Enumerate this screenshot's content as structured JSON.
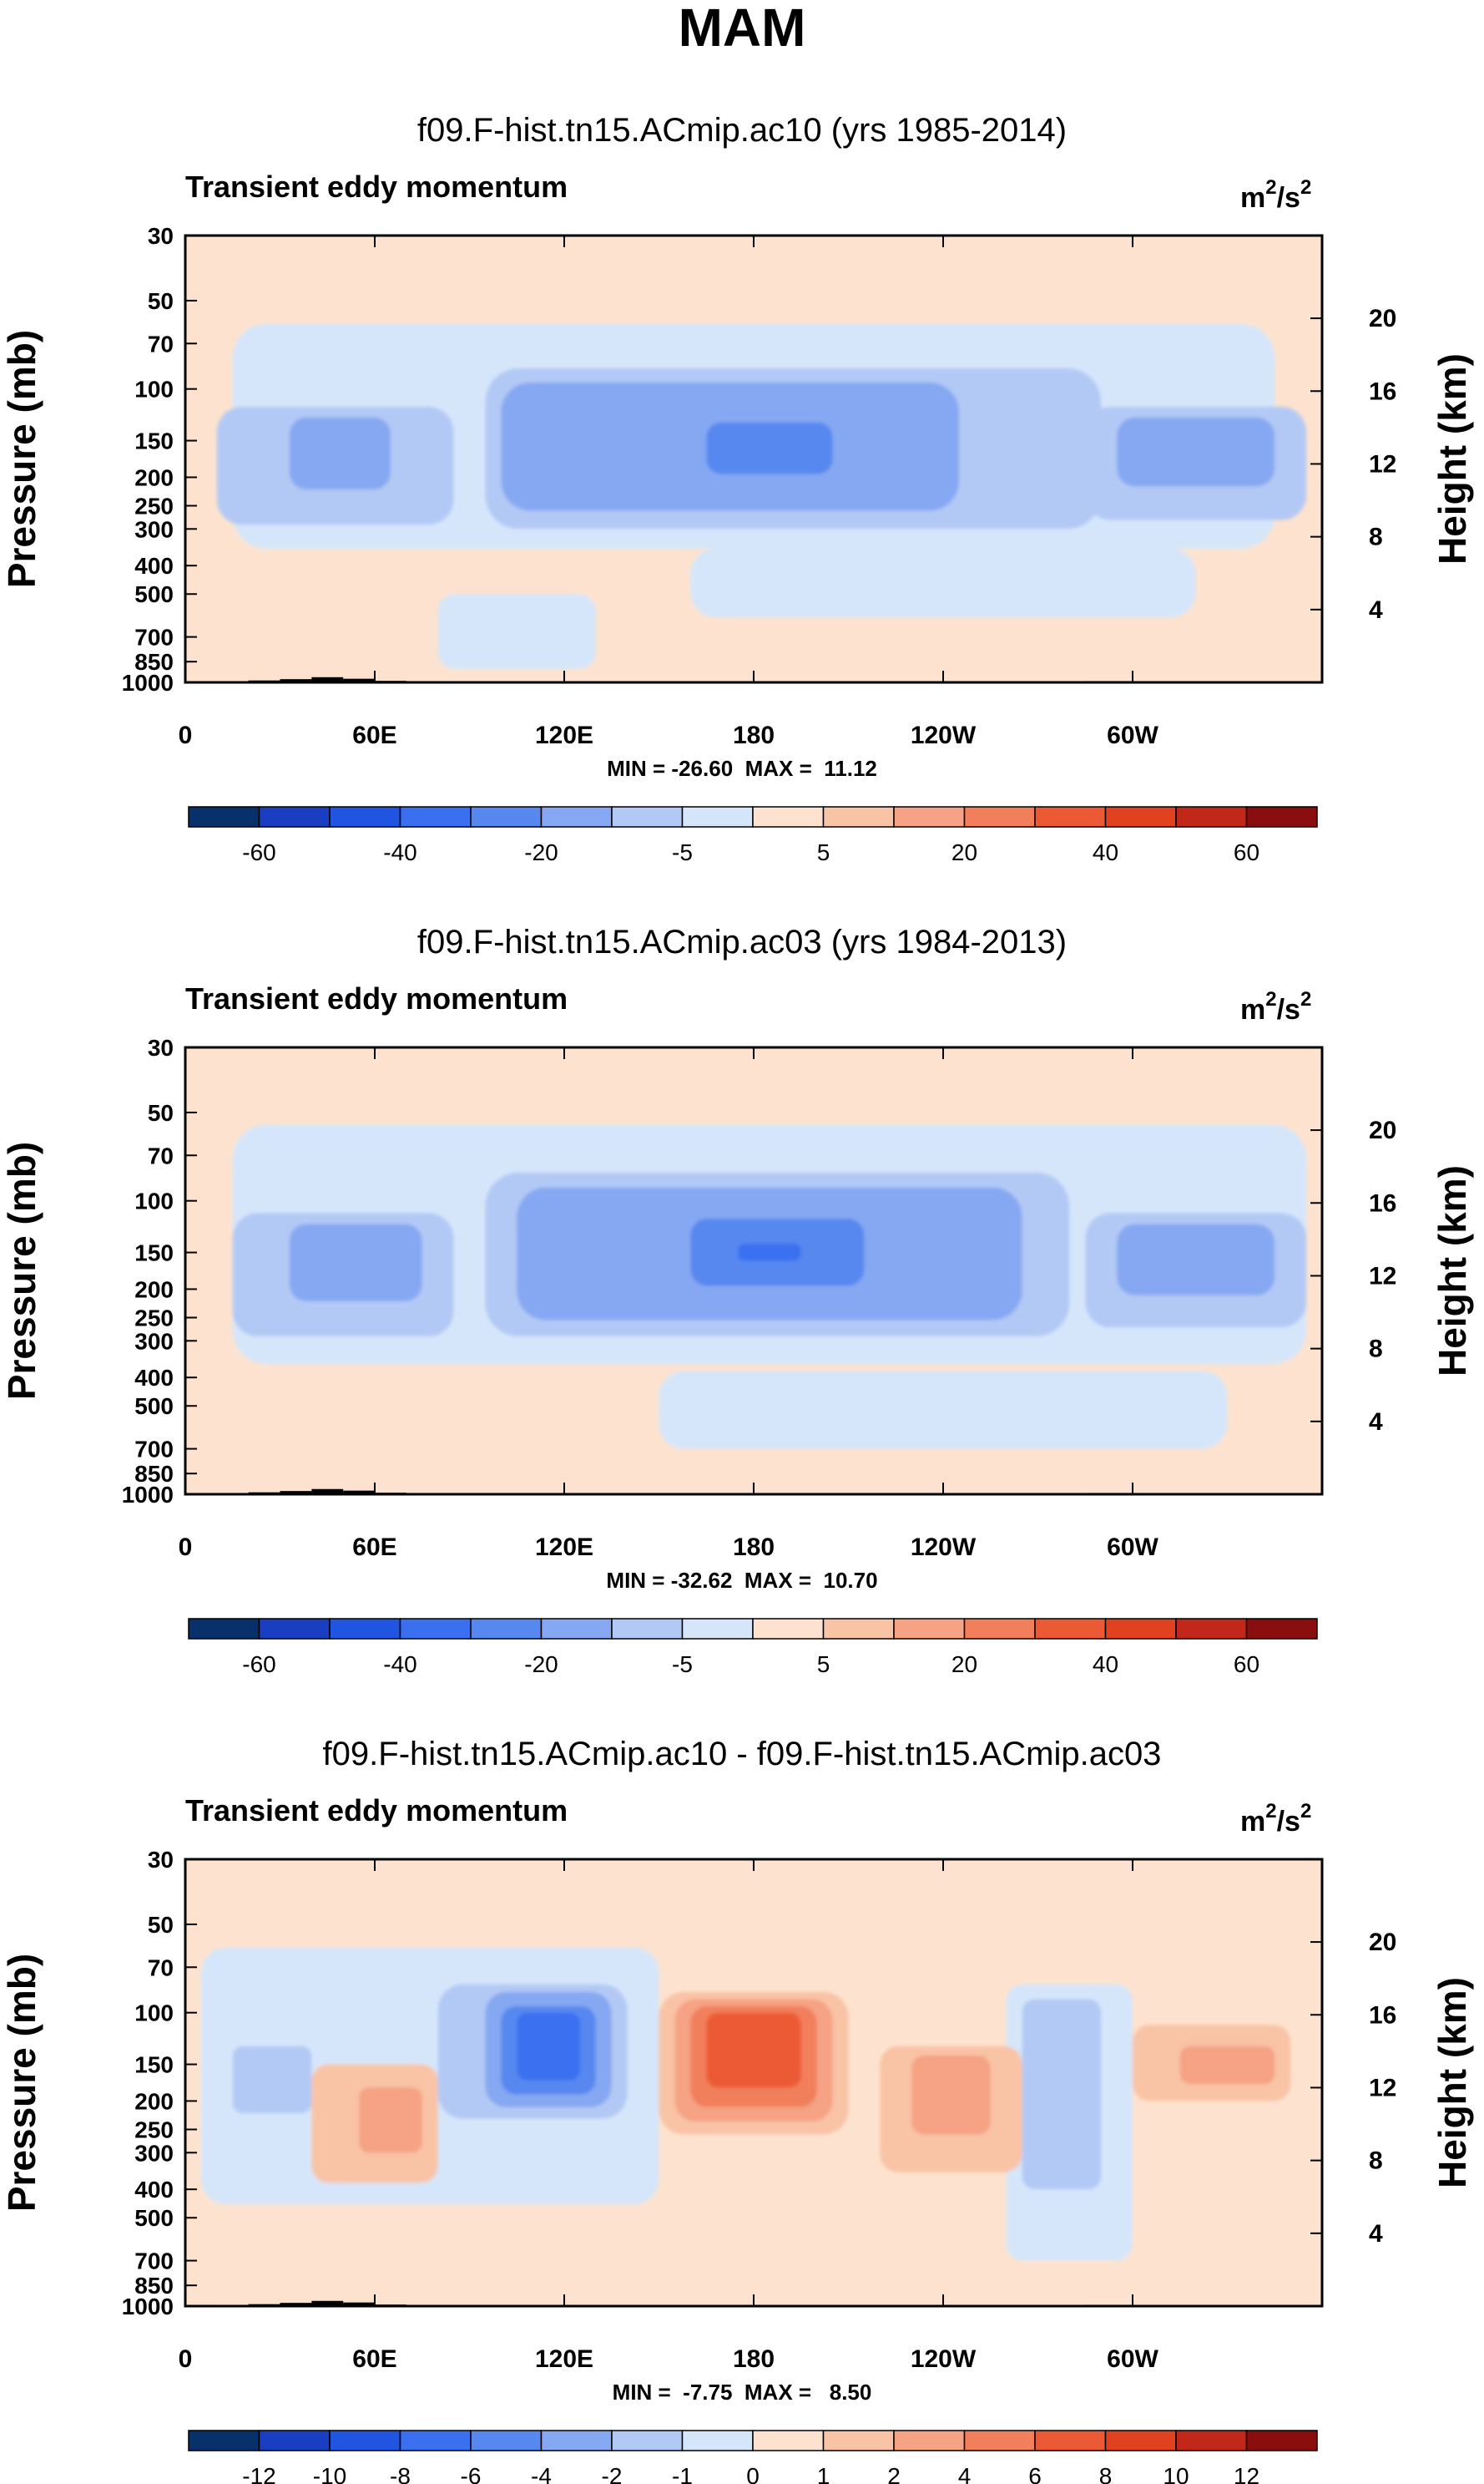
{
  "figure": {
    "title": "MAM"
  },
  "colors": {
    "background": "#fde3cf",
    "topography": "#000000",
    "frame": "#000000"
  },
  "chart_data": [
    {
      "type": "contour",
      "title": "f09.F-hist.tn15.ACmip.ac10 (yrs 1985-2014)",
      "subtitle_left": "Transient eddy momentum",
      "units_base": "m",
      "units_exp1": "2",
      "units_mid": "/s",
      "units_exp2": "2",
      "ylabel": "Pressure (mb)",
      "ylabel_right": "Height (km)",
      "pressure_ticks": [
        "30",
        "50",
        "70",
        "100",
        "150",
        "200",
        "250",
        "300",
        "400",
        "500",
        "700",
        "850",
        "1000"
      ],
      "pressure_values": [
        30,
        50,
        70,
        100,
        150,
        200,
        250,
        300,
        400,
        500,
        700,
        850,
        1000
      ],
      "height_ticks": [
        "20",
        "16",
        "12",
        "8",
        "4"
      ],
      "height_values": [
        20,
        16,
        12,
        8,
        4
      ],
      "lon_ticks": [
        "0",
        "60E",
        "120E",
        "180",
        "120W",
        "60W"
      ],
      "lon_values": [
        0,
        60,
        120,
        180,
        240,
        300
      ],
      "xlim": [
        0,
        360
      ],
      "ylim": [
        1000,
        30
      ],
      "stats": "MIN = -26.60  MAX =  11.12",
      "min": -26.6,
      "max": 11.12,
      "colorbar": {
        "labels": [
          "-60",
          "-40",
          "-20",
          "-5",
          "5",
          "20",
          "40",
          "60"
        ],
        "colors": [
          "#08306b",
          "#1a3ec2",
          "#1f55e0",
          "#3a6ff0",
          "#5688f0",
          "#86a8f2",
          "#b3c9f5",
          "#d6e6fa",
          "#fde3cf",
          "#f9c3a6",
          "#f6a284",
          "#f27f5c",
          "#ec5a35",
          "#e0421f",
          "#c2281a",
          "#8a0e0e"
        ]
      },
      "features": [
        {
          "type": "negative-core",
          "lon_center": 185,
          "pressure_center": 150,
          "level": -20
        },
        {
          "type": "negative-core",
          "lon_center": 50,
          "pressure_center": 170,
          "level": -10
        },
        {
          "type": "negative-core",
          "lon_center": 320,
          "pressure_center": 160,
          "level": -10
        }
      ]
    },
    {
      "type": "contour",
      "title": "f09.F-hist.tn15.ACmip.ac03 (yrs 1984-2013)",
      "subtitle_left": "Transient eddy momentum",
      "units_base": "m",
      "units_exp1": "2",
      "units_mid": "/s",
      "units_exp2": "2",
      "ylabel": "Pressure (mb)",
      "ylabel_right": "Height (km)",
      "pressure_ticks": [
        "30",
        "50",
        "70",
        "100",
        "150",
        "200",
        "250",
        "300",
        "400",
        "500",
        "700",
        "850",
        "1000"
      ],
      "pressure_values": [
        30,
        50,
        70,
        100,
        150,
        200,
        250,
        300,
        400,
        500,
        700,
        850,
        1000
      ],
      "height_ticks": [
        "20",
        "16",
        "12",
        "8",
        "4"
      ],
      "height_values": [
        20,
        16,
        12,
        8,
        4
      ],
      "lon_ticks": [
        "0",
        "60E",
        "120E",
        "180",
        "120W",
        "60W"
      ],
      "lon_values": [
        0,
        60,
        120,
        180,
        240,
        300
      ],
      "xlim": [
        0,
        360
      ],
      "ylim": [
        1000,
        30
      ],
      "stats": "MIN = -32.62  MAX =  10.70",
      "min": -32.62,
      "max": 10.7,
      "colorbar": {
        "labels": [
          "-60",
          "-40",
          "-20",
          "-5",
          "5",
          "20",
          "40",
          "60"
        ],
        "colors": [
          "#08306b",
          "#1a3ec2",
          "#1f55e0",
          "#3a6ff0",
          "#5688f0",
          "#86a8f2",
          "#b3c9f5",
          "#d6e6fa",
          "#fde3cf",
          "#f9c3a6",
          "#f6a284",
          "#f27f5c",
          "#ec5a35",
          "#e0421f",
          "#c2281a",
          "#8a0e0e"
        ]
      },
      "features": [
        {
          "type": "negative-core",
          "lon_center": 185,
          "pressure_center": 150,
          "level": -30
        },
        {
          "type": "negative-core",
          "lon_center": 50,
          "pressure_center": 170,
          "level": -10
        },
        {
          "type": "negative-core",
          "lon_center": 315,
          "pressure_center": 160,
          "level": -10
        }
      ]
    },
    {
      "type": "contour",
      "title": "f09.F-hist.tn15.ACmip.ac10 - f09.F-hist.tn15.ACmip.ac03",
      "subtitle_left": "Transient eddy momentum",
      "units_base": "m",
      "units_exp1": "2",
      "units_mid": "/s",
      "units_exp2": "2",
      "ylabel": "Pressure (mb)",
      "ylabel_right": "Height (km)",
      "pressure_ticks": [
        "30",
        "50",
        "70",
        "100",
        "150",
        "200",
        "250",
        "300",
        "400",
        "500",
        "700",
        "850",
        "1000"
      ],
      "pressure_values": [
        30,
        50,
        70,
        100,
        150,
        200,
        250,
        300,
        400,
        500,
        700,
        850,
        1000
      ],
      "height_ticks": [
        "20",
        "16",
        "12",
        "8",
        "4"
      ],
      "height_values": [
        20,
        16,
        12,
        8,
        4
      ],
      "lon_ticks": [
        "0",
        "60E",
        "120E",
        "180",
        "120W",
        "60W"
      ],
      "lon_values": [
        0,
        60,
        120,
        180,
        240,
        300
      ],
      "xlim": [
        0,
        360
      ],
      "ylim": [
        1000,
        30
      ],
      "stats": "MIN =  -7.75  MAX =   8.50",
      "min": -7.75,
      "max": 8.5,
      "colorbar": {
        "labels": [
          "-12",
          "-10",
          "-8",
          "-6",
          "-4",
          "-2",
          "-1",
          "0",
          "1",
          "2",
          "4",
          "6",
          "8",
          "10",
          "12"
        ],
        "colors": [
          "#08306b",
          "#1a3ec2",
          "#1f55e0",
          "#3a6ff0",
          "#5688f0",
          "#86a8f2",
          "#b3c9f5",
          "#d6e6fa",
          "#fde3cf",
          "#f9c3a6",
          "#f6a284",
          "#f27f5c",
          "#ec5a35",
          "#e0421f",
          "#c2281a",
          "#8a0e0e"
        ]
      },
      "features": [
        {
          "type": "negative-core",
          "lon_center": 115,
          "pressure_center": 130,
          "level": -7
        },
        {
          "type": "positive-core",
          "lon_center": 180,
          "pressure_center": 120,
          "level": 8
        },
        {
          "type": "positive-core",
          "lon_center": 240,
          "pressure_center": 180,
          "level": 4
        },
        {
          "type": "positive-core",
          "lon_center": 60,
          "pressure_center": 200,
          "level": 2
        },
        {
          "type": "positive-core",
          "lon_center": 330,
          "pressure_center": 150,
          "level": 2
        }
      ]
    }
  ]
}
